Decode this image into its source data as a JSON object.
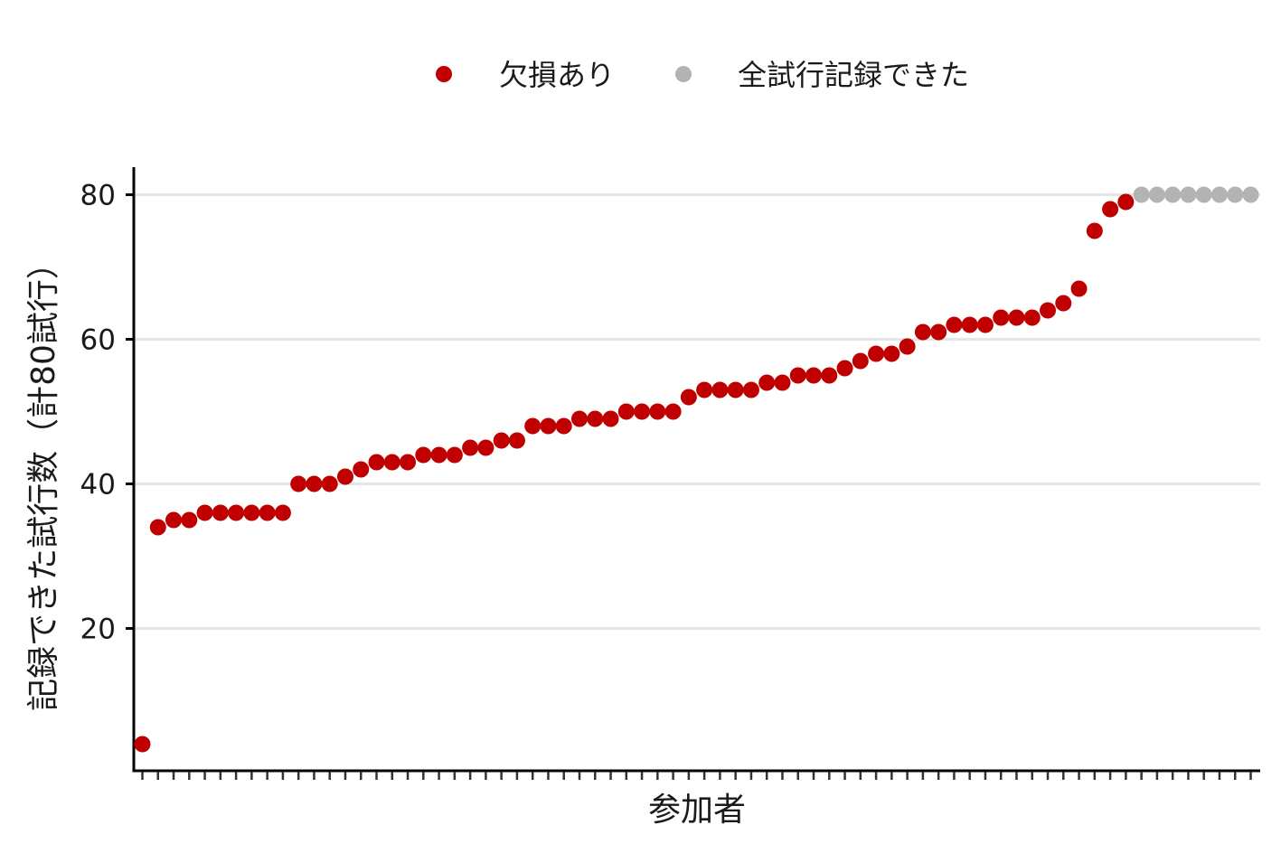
{
  "chart_data": {
    "type": "scatter",
    "title": "",
    "xlabel": "参加者",
    "ylabel": "記録できた試行数（計80試行）",
    "ylim": [
      0,
      84
    ],
    "y_ticks": [
      20,
      40,
      60,
      80
    ],
    "y_tick_labels": [
      "20",
      "40",
      "60",
      "80"
    ],
    "grid": "horizontal major lines",
    "legend_position": "top",
    "legend": [
      {
        "label": "欠損あり",
        "color": "#c00000"
      },
      {
        "label": "全試行記録できた",
        "color": "#b3b3b3"
      }
    ],
    "x_ticks_labeled": false,
    "series": [
      {
        "name": "欠損あり",
        "color": "#c00000",
        "values": [
          4,
          34,
          35,
          35,
          36,
          36,
          36,
          36,
          36,
          36,
          40,
          40,
          40,
          41,
          42,
          43,
          43,
          43,
          44,
          44,
          44,
          45,
          45,
          46,
          46,
          48,
          48,
          48,
          49,
          49,
          49,
          50,
          50,
          50,
          50,
          52,
          53,
          53,
          53,
          53,
          54,
          54,
          55,
          55,
          55,
          56,
          57,
          58,
          58,
          59,
          61,
          61,
          62,
          62,
          62,
          63,
          63,
          63,
          64,
          65,
          67,
          75,
          78,
          79
        ]
      },
      {
        "name": "全試行記録できた",
        "color": "#b3b3b3",
        "values": [
          80,
          80,
          80,
          80,
          80,
          80,
          80,
          80
        ]
      }
    ]
  }
}
